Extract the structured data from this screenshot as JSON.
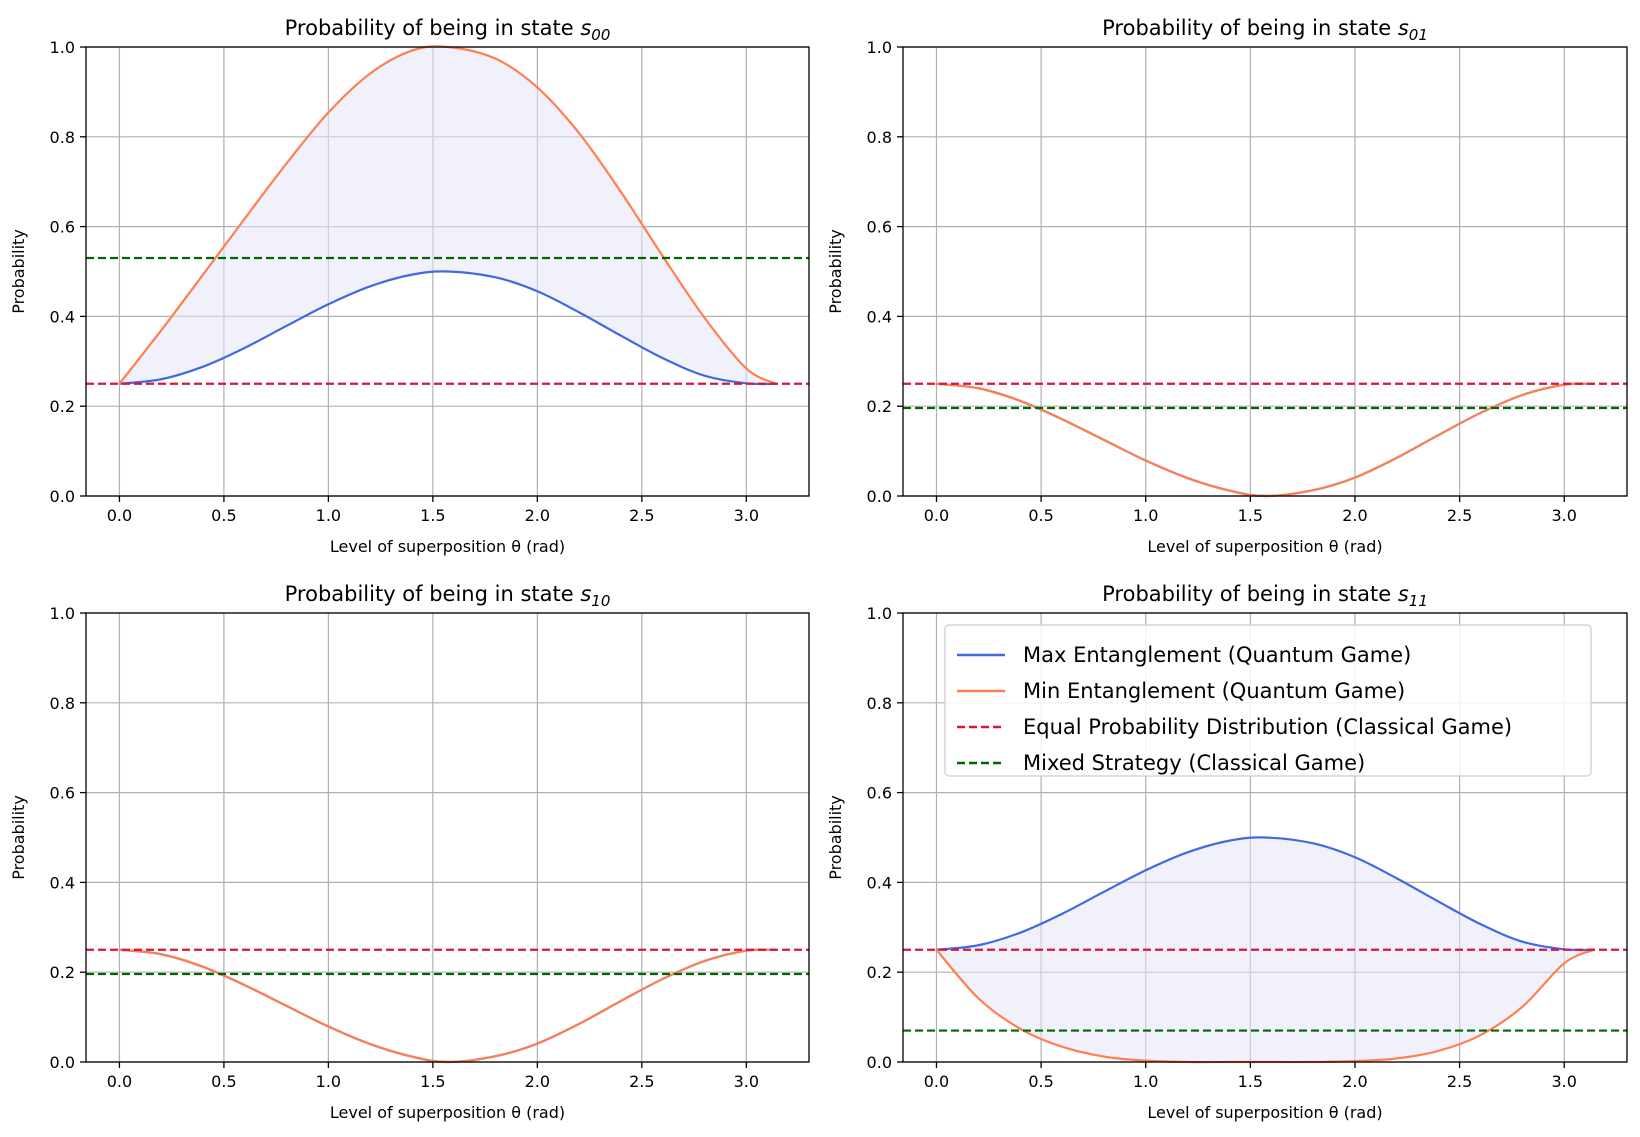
{
  "chart_data": [
    {
      "type": "line",
      "title_prefix": "Probability of being in state ",
      "title_sub": "s",
      "title_subscript": "00",
      "xlabel": "Level of superposition θ (rad)",
      "ylabel": "Probability",
      "xlim": [
        -0.16,
        3.3
      ],
      "ylim": [
        0.0,
        1.0
      ],
      "xticks": [
        "0.0",
        "0.5",
        "1.0",
        "1.5",
        "2.0",
        "2.5",
        "3.0"
      ],
      "yticks": [
        "0.0",
        "0.2",
        "0.4",
        "0.6",
        "0.8",
        "1.0"
      ],
      "grid": true,
      "legend": false,
      "fill_between": true,
      "x": [
        0.0,
        0.2,
        0.4,
        0.6,
        0.8,
        1.0,
        1.2,
        1.4,
        1.5708,
        1.8,
        2.0,
        2.2,
        2.4,
        2.6,
        2.8,
        3.0,
        3.1416
      ],
      "series": [
        {
          "label": "Max Entanglement (Quantum Game)",
          "color": "#4169e1",
          "style": "solid",
          "values": [
            0.25,
            0.26,
            0.288,
            0.33,
            0.379,
            0.427,
            0.467,
            0.493,
            0.5,
            0.487,
            0.456,
            0.409,
            0.357,
            0.307,
            0.268,
            0.251,
            0.25
          ]
        },
        {
          "label": "Min Entanglement (Quantum Game)",
          "color": "#ff7f50",
          "style": "solid",
          "values": [
            0.25,
            0.369,
            0.493,
            0.618,
            0.741,
            0.854,
            0.941,
            0.992,
            1.0,
            0.974,
            0.91,
            0.808,
            0.677,
            0.534,
            0.397,
            0.284,
            0.25
          ]
        },
        {
          "label": "Equal Probability Distribution (Classical Game)",
          "color": "#dc143c",
          "style": "dashed",
          "constant": 0.25
        },
        {
          "label": "Mixed Strategy (Classical Game)",
          "color": "#006400",
          "style": "dashed",
          "constant": 0.53
        }
      ]
    },
    {
      "type": "line",
      "title_prefix": "Probability of being in state ",
      "title_sub": "s",
      "title_subscript": "01",
      "xlabel": "Level of superposition θ (rad)",
      "ylabel": "Probability",
      "xlim": [
        -0.16,
        3.3
      ],
      "ylim": [
        0.0,
        1.0
      ],
      "xticks": [
        "0.0",
        "0.5",
        "1.0",
        "1.5",
        "2.0",
        "2.5",
        "3.0"
      ],
      "yticks": [
        "0.0",
        "0.2",
        "0.4",
        "0.6",
        "0.8",
        "1.0"
      ],
      "grid": true,
      "legend": false,
      "fill_between": false,
      "x": [
        0.0,
        0.2,
        0.4,
        0.6,
        0.8,
        1.0,
        1.2,
        1.4,
        1.5708,
        1.8,
        2.0,
        2.2,
        2.4,
        2.6,
        2.8,
        3.0,
        3.1416
      ],
      "series": [
        {
          "label": "Max Entanglement (Quantum Game)",
          "color": "#4169e1",
          "style": "solid",
          "values": [
            0.25,
            0.24,
            0.212,
            0.171,
            0.125,
            0.079,
            0.04,
            0.012,
            0.0,
            0.013,
            0.041,
            0.085,
            0.136,
            0.185,
            0.225,
            0.248,
            0.25
          ]
        },
        {
          "label": "Min Entanglement (Quantum Game)",
          "color": "#ff7f50",
          "style": "solid",
          "values": [
            0.25,
            0.24,
            0.212,
            0.171,
            0.125,
            0.079,
            0.04,
            0.012,
            0.0,
            0.013,
            0.041,
            0.085,
            0.136,
            0.185,
            0.225,
            0.248,
            0.25
          ]
        },
        {
          "label": "Equal Probability Distribution (Classical Game)",
          "color": "#dc143c",
          "style": "dashed",
          "constant": 0.25
        },
        {
          "label": "Mixed Strategy (Classical Game)",
          "color": "#006400",
          "style": "dashed",
          "constant": 0.196
        }
      ]
    },
    {
      "type": "line",
      "title_prefix": "Probability of being in state ",
      "title_sub": "s",
      "title_subscript": "10",
      "xlabel": "Level of superposition θ (rad)",
      "ylabel": "Probability",
      "xlim": [
        -0.16,
        3.3
      ],
      "ylim": [
        0.0,
        1.0
      ],
      "xticks": [
        "0.0",
        "0.5",
        "1.0",
        "1.5",
        "2.0",
        "2.5",
        "3.0"
      ],
      "yticks": [
        "0.0",
        "0.2",
        "0.4",
        "0.6",
        "0.8",
        "1.0"
      ],
      "grid": true,
      "legend": false,
      "fill_between": false,
      "x": [
        0.0,
        0.2,
        0.4,
        0.6,
        0.8,
        1.0,
        1.2,
        1.4,
        1.5708,
        1.8,
        2.0,
        2.2,
        2.4,
        2.6,
        2.8,
        3.0,
        3.1416
      ],
      "series": [
        {
          "label": "Max Entanglement (Quantum Game)",
          "color": "#4169e1",
          "style": "solid",
          "values": [
            0.25,
            0.24,
            0.212,
            0.171,
            0.125,
            0.079,
            0.04,
            0.012,
            0.0,
            0.013,
            0.041,
            0.085,
            0.136,
            0.185,
            0.225,
            0.248,
            0.25
          ]
        },
        {
          "label": "Min Entanglement (Quantum Game)",
          "color": "#ff7f50",
          "style": "solid",
          "values": [
            0.25,
            0.24,
            0.212,
            0.171,
            0.125,
            0.079,
            0.04,
            0.012,
            0.0,
            0.013,
            0.041,
            0.085,
            0.136,
            0.185,
            0.225,
            0.248,
            0.25
          ]
        },
        {
          "label": "Equal Probability Distribution (Classical Game)",
          "color": "#dc143c",
          "style": "dashed",
          "constant": 0.25
        },
        {
          "label": "Mixed Strategy (Classical Game)",
          "color": "#006400",
          "style": "dashed",
          "constant": 0.196
        }
      ]
    },
    {
      "type": "line",
      "title_prefix": "Probability of being in state ",
      "title_sub": "s",
      "title_subscript": "11",
      "xlabel": "Level of superposition θ (rad)",
      "ylabel": "Probability",
      "xlim": [
        -0.16,
        3.3
      ],
      "ylim": [
        0.0,
        1.0
      ],
      "xticks": [
        "0.0",
        "0.5",
        "1.0",
        "1.5",
        "2.0",
        "2.5",
        "3.0"
      ],
      "yticks": [
        "0.0",
        "0.2",
        "0.4",
        "0.6",
        "0.8",
        "1.0"
      ],
      "grid": true,
      "legend": true,
      "legend_loc": "upper-right",
      "fill_between": true,
      "x": [
        0.0,
        0.2,
        0.4,
        0.6,
        0.8,
        1.0,
        1.2,
        1.4,
        1.5708,
        1.8,
        2.0,
        2.2,
        2.4,
        2.6,
        2.8,
        3.0,
        3.1416
      ],
      "series": [
        {
          "label": "Max Entanglement (Quantum Game)",
          "color": "#4169e1",
          "style": "solid",
          "values": [
            0.25,
            0.26,
            0.288,
            0.33,
            0.379,
            0.427,
            0.467,
            0.493,
            0.5,
            0.487,
            0.456,
            0.409,
            0.357,
            0.307,
            0.268,
            0.251,
            0.25
          ]
        },
        {
          "label": "Min Entanglement (Quantum Game)",
          "color": "#ff7f50",
          "style": "solid",
          "values": [
            0.25,
            0.142,
            0.074,
            0.034,
            0.012,
            0.003,
            0.0,
            0.0,
            0.0,
            0.0,
            0.002,
            0.008,
            0.025,
            0.06,
            0.123,
            0.22,
            0.25
          ]
        },
        {
          "label": "Equal Probability Distribution (Classical Game)",
          "color": "#dc143c",
          "style": "dashed",
          "constant": 0.25
        },
        {
          "label": "Mixed Strategy (Classical Game)",
          "color": "#006400",
          "style": "dashed",
          "constant": 0.07
        }
      ]
    }
  ],
  "colors": {
    "fill": "#e6e6fa",
    "grid": "#b0b0b0"
  }
}
